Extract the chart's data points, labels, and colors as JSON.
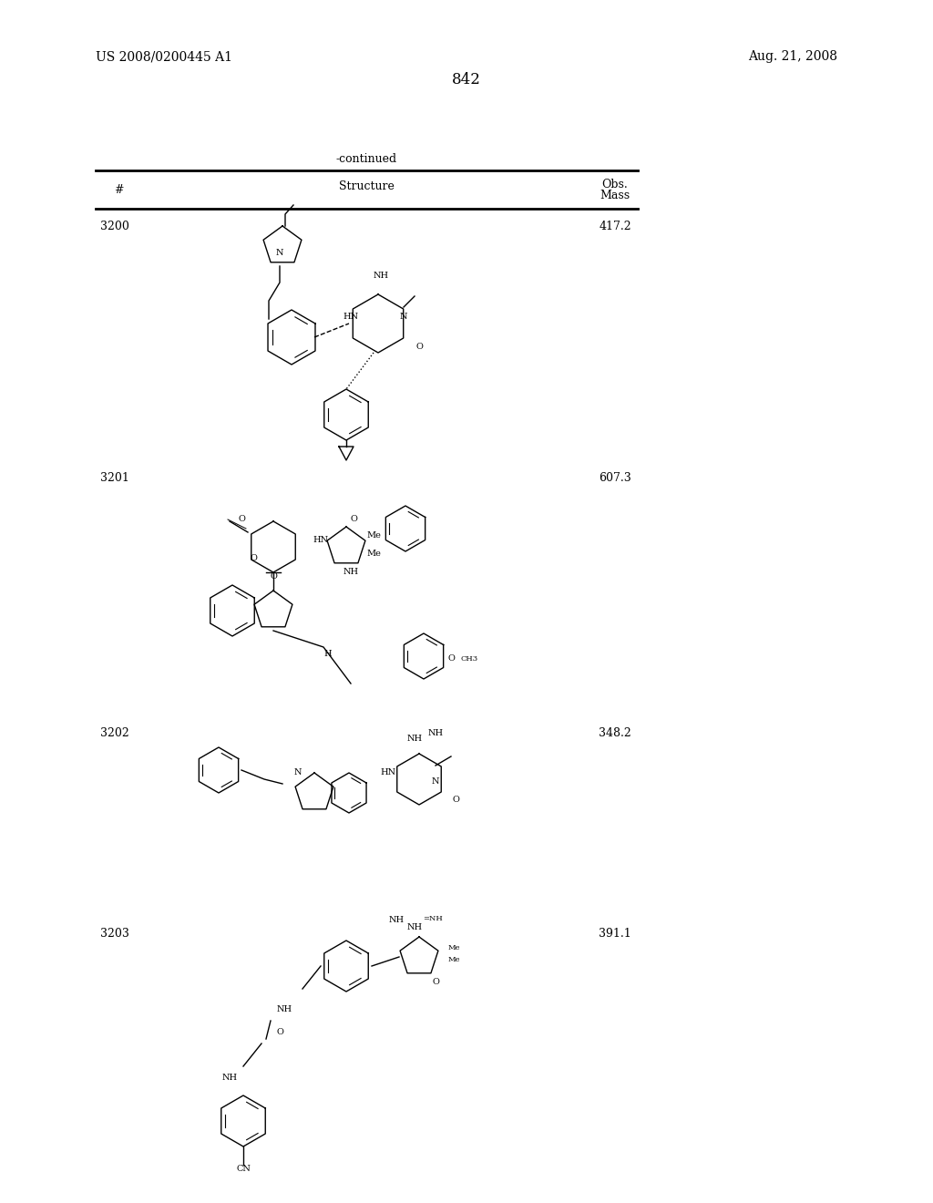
{
  "page_number": "842",
  "patent_number": "US 2008/0200445 A1",
  "patent_date": "Aug. 21, 2008",
  "table_title": "-continued",
  "col_headers": [
    "#",
    "Structure",
    "Obs.\nMass"
  ],
  "compounds": [
    {
      "id": "3200",
      "mass": "417.2"
    },
    {
      "id": "3201",
      "mass": "607.3"
    },
    {
      "id": "3202",
      "mass": "348.2"
    },
    {
      "id": "3203",
      "mass": "391.1"
    }
  ],
  "bg_color": "#ffffff",
  "text_color": "#000000",
  "font_size_header": 9,
  "font_size_body": 9,
  "font_size_page": 10,
  "font_size_page_num": 12
}
